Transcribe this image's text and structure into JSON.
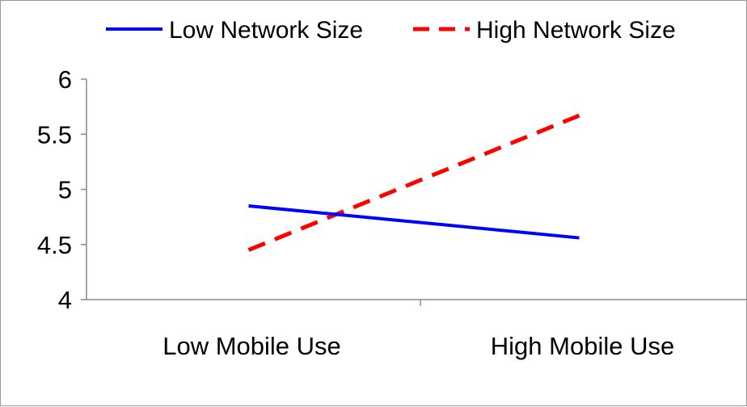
{
  "chart_data": {
    "type": "line",
    "categories": [
      "Low Mobile Use",
      "High Mobile Use"
    ],
    "series": [
      {
        "name": "Low Network Size",
        "values": [
          4.85,
          4.56
        ],
        "color": "#0000ff",
        "style": "solid"
      },
      {
        "name": "High Network Size",
        "values": [
          4.45,
          5.67
        ],
        "color": "#ff0000",
        "style": "dashed"
      }
    ],
    "y_ticks": [
      "4",
      "4.5",
      "5",
      "5.5",
      "6"
    ],
    "ylim": [
      4,
      6
    ],
    "title": "",
    "xlabel": "",
    "ylabel": "",
    "grid": false,
    "legend_position": "top"
  }
}
